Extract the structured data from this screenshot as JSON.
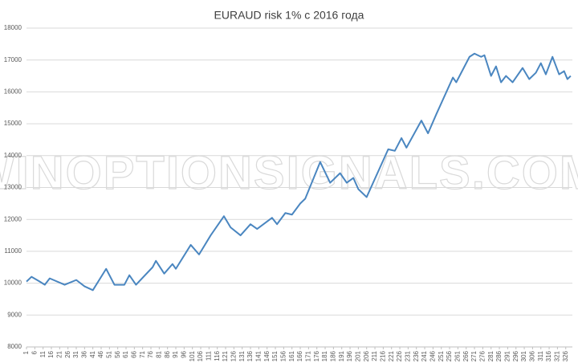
{
  "chart_data": {
    "type": "line",
    "title": "EURAUD risk 1% с 2016 года",
    "watermark": "WINOPTIONSIGNALS.COM",
    "x": [
      1,
      4,
      9,
      12,
      15,
      24,
      31,
      36,
      41,
      49,
      54,
      60,
      63,
      67,
      77,
      79,
      84,
      89,
      91,
      100,
      105,
      112,
      120,
      124,
      130,
      136,
      140,
      149,
      152,
      157,
      161,
      166,
      169,
      178,
      184,
      190,
      194,
      198,
      201,
      206,
      219,
      223,
      227,
      230,
      239,
      243,
      248,
      258,
      260,
      268,
      271,
      275,
      277,
      281,
      284,
      287,
      290,
      294,
      300,
      304,
      308,
      311,
      314,
      318,
      322,
      325,
      327,
      329
    ],
    "series": [
      {
        "name": "EURAUD",
        "color": "#4a86c0",
        "values": [
          10050,
          10200,
          10050,
          9950,
          10150,
          9950,
          10100,
          9900,
          9780,
          10450,
          9950,
          9950,
          10250,
          9950,
          10500,
          10700,
          10300,
          10600,
          10450,
          11200,
          10900,
          11500,
          12100,
          11750,
          11500,
          11850,
          11700,
          12050,
          11850,
          12200,
          12150,
          12500,
          12650,
          13800,
          13150,
          13450,
          13150,
          13300,
          12950,
          12700,
          14200,
          14150,
          14550,
          14250,
          15100,
          14700,
          15300,
          16450,
          16300,
          17100,
          17200,
          17100,
          17150,
          16500,
          16800,
          16300,
          16500,
          16300,
          16750,
          16400,
          16600,
          16900,
          16550,
          17100,
          16550,
          16650,
          16400,
          16500
        ]
      }
    ],
    "xlim": [
      1,
      330
    ],
    "xticks": [
      1,
      6,
      11,
      16,
      21,
      26,
      31,
      36,
      41,
      46,
      51,
      56,
      61,
      66,
      71,
      76,
      81,
      86,
      91,
      96,
      101,
      106,
      111,
      116,
      121,
      126,
      131,
      136,
      141,
      146,
      151,
      156,
      161,
      166,
      171,
      176,
      181,
      186,
      191,
      196,
      201,
      206,
      211,
      216,
      221,
      226,
      231,
      236,
      241,
      246,
      251,
      256,
      261,
      266,
      271,
      276,
      281,
      286,
      291,
      296,
      301,
      306,
      311,
      316,
      321,
      326
    ],
    "ylim": [
      8000,
      18000
    ],
    "yticks": [
      8000,
      9000,
      10000,
      11000,
      12000,
      13000,
      14000,
      15000,
      16000,
      17000,
      18000
    ],
    "grid": true
  }
}
